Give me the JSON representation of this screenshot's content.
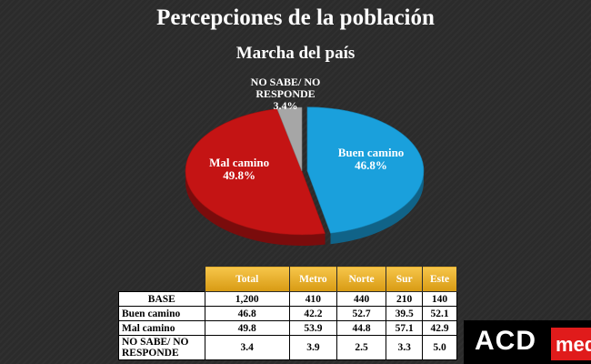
{
  "title": "Percepciones de la población",
  "subtitle": "Marcha del país",
  "chart_data": {
    "type": "pie",
    "title": "Marcha del país",
    "slices": [
      {
        "label_lines": [
          "Buen camino"
        ],
        "value": 46.8,
        "display": "46.8%",
        "color": "#1aa0dc"
      },
      {
        "label_lines": [
          "Mal camino"
        ],
        "value": 49.8,
        "display": "49.8%",
        "color": "#c41414"
      },
      {
        "label_lines": [
          "NO SABE/ NO",
          "RESPONDE"
        ],
        "value": 3.4,
        "display": "3.4%",
        "color": "#a6a6a6"
      }
    ]
  },
  "table": {
    "headers": [
      "Total",
      "Metro",
      "Norte",
      "Sur",
      "Este"
    ],
    "rows": [
      {
        "label": "BASE",
        "values": [
          "1,200",
          "410",
          "440",
          "210",
          "140"
        ]
      },
      {
        "label": "Buen camino",
        "values": [
          "46.8",
          "42.2",
          "52.7",
          "39.5",
          "52.1"
        ]
      },
      {
        "label": "Mal camino",
        "values": [
          "49.8",
          "53.9",
          "44.8",
          "57.1",
          "42.9"
        ]
      },
      {
        "label": "NO SABE/ NO RESPONDE",
        "values": [
          "3.4",
          "3.9",
          "2.5",
          "3.3",
          "5.0"
        ]
      }
    ]
  },
  "logo": {
    "text_main": "ACD",
    "text_red": "med"
  }
}
